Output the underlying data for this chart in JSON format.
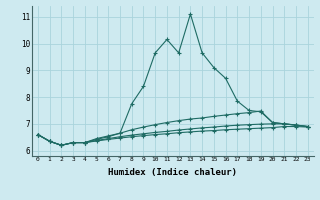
{
  "xlabel": "Humidex (Indice chaleur)",
  "background_color": "#ceeaf0",
  "grid_color": "#aad4dc",
  "line_color": "#1e6b64",
  "x": [
    0,
    1,
    2,
    3,
    4,
    5,
    6,
    7,
    8,
    9,
    10,
    11,
    12,
    13,
    14,
    15,
    16,
    17,
    18,
    19,
    20,
    21,
    22,
    23
  ],
  "series1": [
    6.6,
    6.35,
    6.2,
    6.3,
    6.3,
    6.45,
    6.55,
    6.65,
    7.75,
    8.4,
    9.65,
    10.15,
    9.65,
    11.1,
    9.65,
    9.1,
    8.7,
    7.85,
    7.5,
    7.45,
    7.05,
    7.0,
    6.95,
    6.9
  ],
  "series2": [
    6.6,
    6.35,
    6.2,
    6.3,
    6.3,
    6.42,
    6.52,
    6.65,
    6.78,
    6.88,
    6.97,
    7.05,
    7.12,
    7.18,
    7.22,
    7.28,
    7.33,
    7.38,
    7.42,
    7.48,
    7.05,
    7.0,
    6.95,
    6.9
  ],
  "series3": [
    6.6,
    6.35,
    6.2,
    6.3,
    6.3,
    6.38,
    6.45,
    6.52,
    6.58,
    6.63,
    6.68,
    6.72,
    6.77,
    6.81,
    6.85,
    6.88,
    6.92,
    6.95,
    6.97,
    6.99,
    7.0,
    7.0,
    6.96,
    6.9
  ],
  "series4": [
    6.6,
    6.35,
    6.2,
    6.3,
    6.3,
    6.36,
    6.42,
    6.47,
    6.52,
    6.56,
    6.6,
    6.63,
    6.67,
    6.7,
    6.73,
    6.75,
    6.78,
    6.8,
    6.82,
    6.84,
    6.86,
    6.9,
    6.9,
    6.88
  ],
  "ylim": [
    5.8,
    11.4
  ],
  "yticks": [
    6,
    7,
    8,
    9,
    10,
    11
  ],
  "xlim": [
    -0.5,
    23.5
  ]
}
